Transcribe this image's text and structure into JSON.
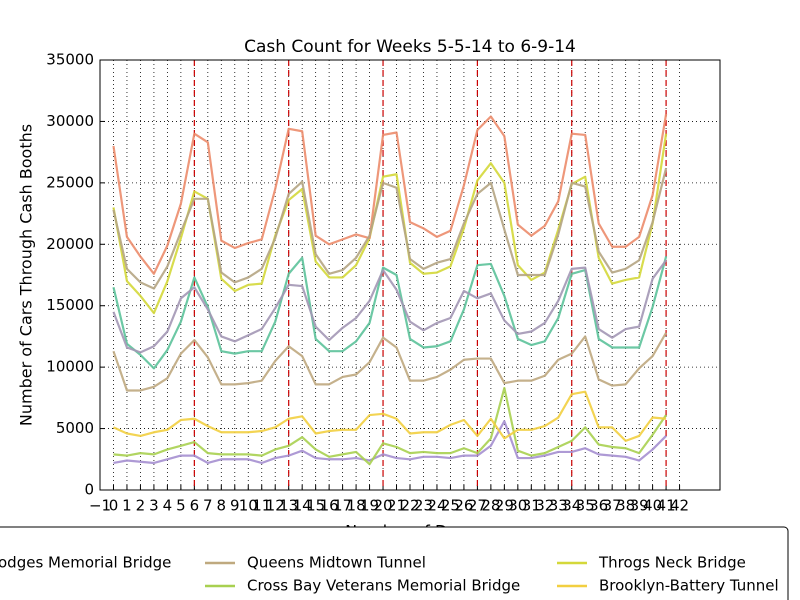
{
  "chart_data": {
    "type": "line",
    "title": "Cash Count for Weeks 5-5-14 to 6-9-14",
    "x_label": "Number of Days",
    "y_label": "Number of Cars Through Cash Booths",
    "x": [
      0,
      1,
      2,
      3,
      4,
      5,
      6,
      7,
      8,
      9,
      10,
      11,
      12,
      13,
      14,
      15,
      16,
      17,
      18,
      19,
      20,
      21,
      22,
      23,
      24,
      25,
      26,
      27,
      28,
      29,
      30,
      31,
      32,
      33,
      34,
      35,
      36,
      37,
      38,
      39,
      40,
      41
    ],
    "xlim": [
      -1,
      45
    ],
    "xticks": [
      {
        "value": -1,
        "label": "−1"
      },
      0,
      1,
      2,
      3,
      4,
      5,
      6,
      7,
      8,
      9,
      10,
      11,
      12,
      13,
      14,
      15,
      16,
      17,
      18,
      19,
      20,
      21,
      22,
      23,
      24,
      25,
      26,
      27,
      28,
      29,
      30,
      31,
      32,
      33,
      34,
      35,
      36,
      37,
      38,
      39,
      40,
      41,
      42
    ],
    "ylim": [
      0,
      35000
    ],
    "yticks": [
      0,
      5000,
      10000,
      15000,
      20000,
      25000,
      30000,
      35000
    ],
    "grid": true,
    "vlines": [
      6,
      13,
      20,
      27,
      34,
      41
    ],
    "vline_color": "#cc0000",
    "series": [
      {
        "name": "odges Memorial Bridge",
        "color": "#a58fd0",
        "values": [
          2200,
          2400,
          2300,
          2200,
          2500,
          2800,
          2800,
          2200,
          2500,
          2500,
          2500,
          2200,
          2600,
          2800,
          3200,
          2600,
          2500,
          2500,
          2600,
          2400,
          2900,
          2600,
          2500,
          2700,
          2700,
          2600,
          2800,
          2800,
          3600,
          5600,
          2600,
          2600,
          2800,
          3100,
          3100,
          3400,
          2900,
          2800,
          2700,
          2400,
          3300,
          4400
        ]
      },
      {
        "name": "Queens Midtown Tunnel",
        "color": "#bfa97f",
        "values": [
          11300,
          8100,
          8100,
          8400,
          9100,
          11100,
          12200,
          10800,
          8600,
          8600,
          8700,
          8900,
          10500,
          11700,
          10900,
          8600,
          8600,
          9200,
          9400,
          10400,
          12400,
          11600,
          8900,
          8900,
          9200,
          9800,
          10600,
          10700,
          10700,
          8700,
          8900,
          8900,
          9300,
          10600,
          11100,
          12500,
          9000,
          8500,
          8600,
          9900,
          10900,
          12800
        ]
      },
      {
        "name": "Cross Bay Veterans Memorial Bridge",
        "color": "#a8d050",
        "values": [
          2900,
          2800,
          3000,
          2900,
          3300,
          3600,
          3900,
          3000,
          2900,
          2900,
          2900,
          2800,
          3300,
          3600,
          4300,
          3300,
          2700,
          2900,
          3100,
          2100,
          3800,
          3500,
          3000,
          3100,
          3000,
          3000,
          3400,
          3000,
          4200,
          8300,
          3200,
          2800,
          3000,
          3500,
          4000,
          5100,
          3700,
          3500,
          3400,
          3000,
          4500,
          6100
        ]
      },
      {
        "name": "Throgs Neck Bridge",
        "color": "#d4d83a",
        "values": [
          23000,
          17000,
          15800,
          14400,
          17000,
          20500,
          24300,
          23700,
          17200,
          16200,
          16700,
          16800,
          20700,
          23600,
          24500,
          18600,
          17300,
          17300,
          18300,
          20500,
          25500,
          25700,
          18500,
          17600,
          17700,
          18200,
          21300,
          25200,
          26600,
          25000,
          18300,
          17100,
          17700,
          21200,
          24900,
          25500,
          18900,
          16800,
          17100,
          17300,
          21700,
          29000
        ]
      },
      {
        "name": "Brooklyn-Battery Tunnel",
        "color": "#f2cf40",
        "values": [
          5100,
          4600,
          4400,
          4700,
          4900,
          5700,
          5800,
          5200,
          4700,
          4700,
          4700,
          4800,
          5100,
          5800,
          6000,
          4600,
          4800,
          4900,
          4900,
          6100,
          6200,
          5800,
          4600,
          4700,
          4700,
          5300,
          5700,
          4400,
          5800,
          4200,
          4900,
          4900,
          5200,
          5900,
          7800,
          8000,
          5100,
          5100,
          4000,
          4400,
          5900,
          5800
        ]
      },
      {
        "color": "#ec8c6c",
        "values": [
          28000,
          20600,
          19000,
          17600,
          19900,
          23300,
          29000,
          28300,
          20300,
          19700,
          20100,
          20400,
          24500,
          29400,
          29200,
          20700,
          20000,
          20400,
          20800,
          20500,
          28900,
          29100,
          21800,
          21300,
          20600,
          21100,
          24800,
          29300,
          30400,
          28800,
          21600,
          20700,
          21500,
          23500,
          29000,
          28900,
          21700,
          19800,
          19800,
          20600,
          24000,
          30600
        ]
      },
      {
        "color": "#b5a583",
        "values": [
          22800,
          18000,
          16900,
          16400,
          18200,
          21000,
          23700,
          23700,
          17700,
          16900,
          17300,
          18000,
          20500,
          24100,
          25100,
          19200,
          17600,
          17900,
          18900,
          20700,
          25000,
          24600,
          18800,
          18000,
          18500,
          18800,
          21700,
          24100,
          25000,
          21200,
          17500,
          17500,
          17500,
          20800,
          25000,
          24700,
          19400,
          17700,
          18000,
          18700,
          21800,
          26200
        ]
      },
      {
        "color": "#5cc29a",
        "values": [
          16500,
          11900,
          11000,
          9900,
          11400,
          13700,
          17300,
          14900,
          11300,
          11100,
          11300,
          11300,
          13700,
          17600,
          18900,
          12300,
          11300,
          11300,
          12100,
          13600,
          18100,
          17500,
          12300,
          11600,
          11700,
          12100,
          14700,
          18300,
          18400,
          15800,
          12300,
          11800,
          12100,
          14000,
          17600,
          17900,
          12300,
          11600,
          11600,
          11600,
          14900,
          19000
        ]
      },
      {
        "color": "#a397b5",
        "values": [
          14500,
          11600,
          11200,
          11700,
          12900,
          15600,
          16500,
          14700,
          12500,
          12100,
          12600,
          13100,
          14800,
          16700,
          16600,
          13300,
          12200,
          13200,
          14000,
          15400,
          17900,
          16300,
          13700,
          13000,
          13600,
          14000,
          16200,
          15600,
          16000,
          13800,
          12700,
          12900,
          13600,
          15400,
          18000,
          18100,
          13100,
          12400,
          13100,
          13300,
          17200,
          18700
        ]
      }
    ]
  }
}
